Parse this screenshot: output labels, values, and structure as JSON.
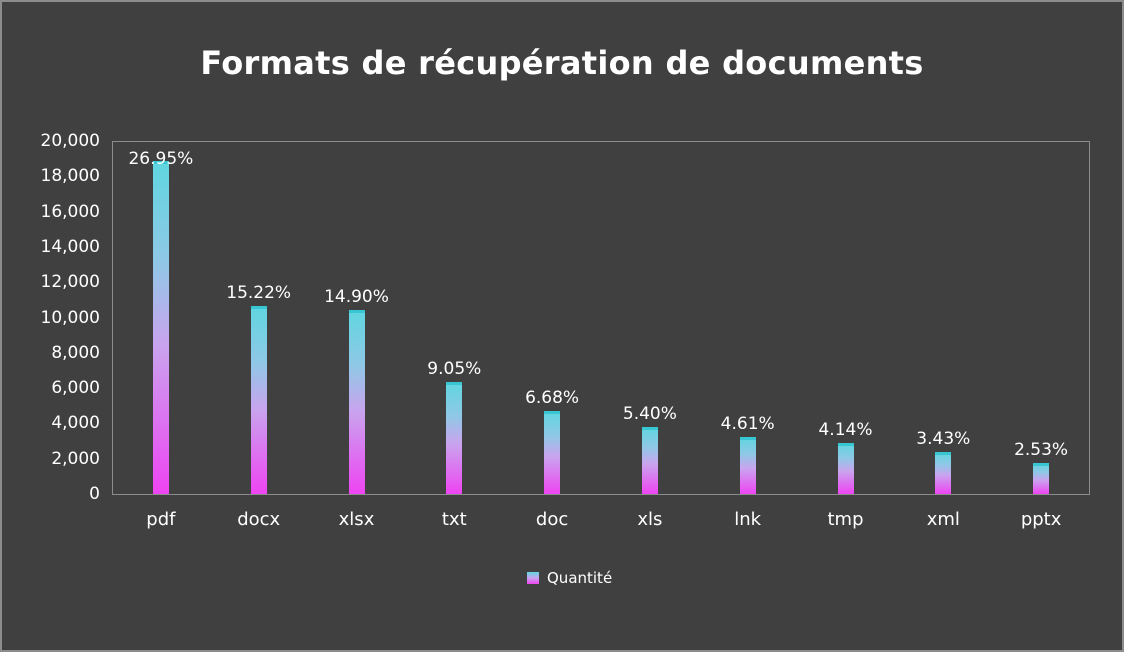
{
  "chart_data": {
    "type": "bar",
    "title": "Formats de récupération de documents",
    "xlabel": "",
    "ylabel": "",
    "categories": [
      "pdf",
      "docx",
      "xlsx",
      "txt",
      "doc",
      "xls",
      "lnk",
      "tmp",
      "xml",
      "pptx"
    ],
    "series": [
      {
        "name": "Quantité",
        "values": [
          18870,
          10650,
          10430,
          6340,
          4680,
          3780,
          3230,
          2900,
          2400,
          1770
        ],
        "data_labels": [
          "26.95%",
          "15.22%",
          "14.90%",
          "9.05%",
          "6.68%",
          "5.40%",
          "4.61%",
          "4.14%",
          "3.43%",
          "2.53%"
        ]
      }
    ],
    "ylim": [
      0,
      20000
    ],
    "yticks": [
      "0",
      "2,000",
      "4,000",
      "6,000",
      "8,000",
      "10,000",
      "12,000",
      "14,000",
      "16,000",
      "18,000",
      "20,000"
    ],
    "grid": false,
    "legend_position": "bottom",
    "colors": {
      "gradient_bottom": "#ee44f2",
      "gradient_mid": "#c9a4ee",
      "gradient_top": "#5fd6e0",
      "background": "#404040",
      "text": "#ffffff",
      "axis": "#8c8c8c"
    }
  }
}
